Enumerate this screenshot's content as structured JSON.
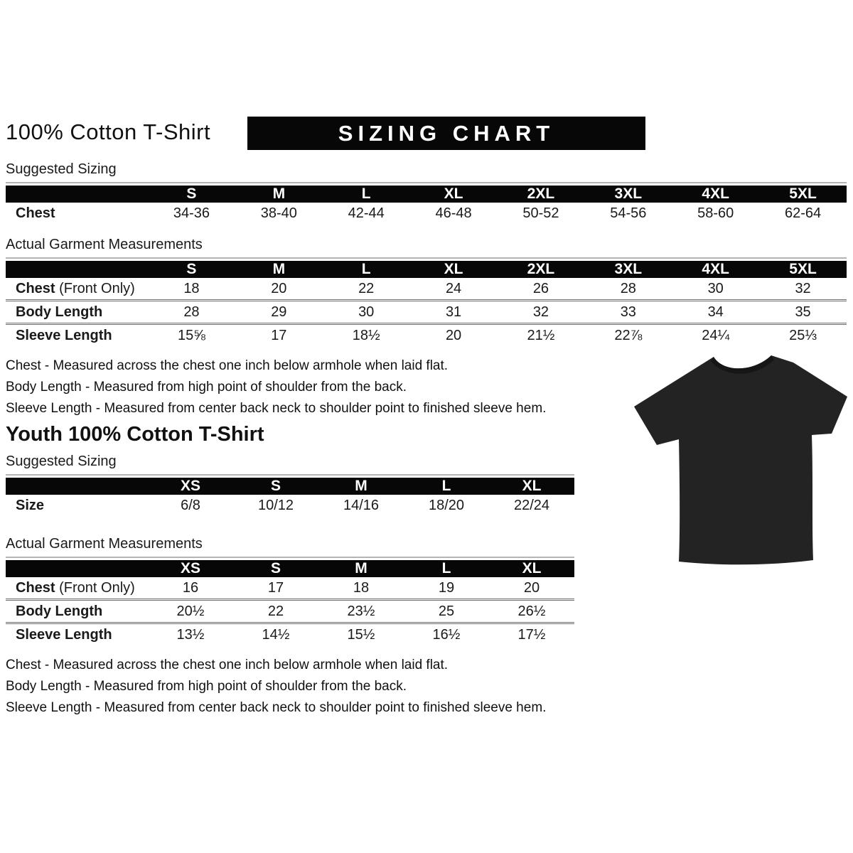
{
  "header": {
    "title": "100% Cotton T-Shirt",
    "banner": "SIZING CHART"
  },
  "adult": {
    "suggested_label": "Suggested Sizing",
    "suggested": {
      "columns": [
        "S",
        "M",
        "L",
        "XL",
        "2XL",
        "3XL",
        "4XL",
        "5XL"
      ],
      "rows": [
        {
          "label": "Chest",
          "suffix": "",
          "values": [
            "34-36",
            "38-40",
            "42-44",
            "46-48",
            "50-52",
            "54-56",
            "58-60",
            "62-64"
          ]
        }
      ]
    },
    "actual_label": "Actual Garment Measurements",
    "actual": {
      "columns": [
        "S",
        "M",
        "L",
        "XL",
        "2XL",
        "3XL",
        "4XL",
        "5XL"
      ],
      "rows": [
        {
          "label": "Chest",
          "suffix": " (Front Only)",
          "values": [
            "18",
            "20",
            "22",
            "24",
            "26",
            "28",
            "30",
            "32"
          ]
        },
        {
          "label": "Body Length",
          "suffix": "",
          "values": [
            "28",
            "29",
            "30",
            "31",
            "32",
            "33",
            "34",
            "35"
          ]
        },
        {
          "label": "Sleeve Length",
          "suffix": "",
          "values": [
            "15⅝",
            "17",
            "18½",
            "20",
            "21½",
            "22⅞",
            "24¼",
            "25⅓"
          ]
        }
      ]
    },
    "notes": [
      "Chest - Measured across the chest one inch below armhole when laid flat.",
      "Body Length - Measured from high point of shoulder from the back.",
      "Sleeve Length - Measured from center back neck to shoulder point to finished sleeve hem."
    ]
  },
  "youth": {
    "title": "Youth 100% Cotton T-Shirt",
    "suggested_label": "Suggested Sizing",
    "suggested": {
      "columns": [
        "XS",
        "S",
        "M",
        "L",
        "XL"
      ],
      "rows": [
        {
          "label": "Size",
          "suffix": "",
          "values": [
            "6/8",
            "10/12",
            "14/16",
            "18/20",
            "22/24"
          ]
        }
      ]
    },
    "actual_label": "Actual Garment Measurements",
    "actual": {
      "columns": [
        "XS",
        "S",
        "M",
        "L",
        "XL"
      ],
      "rows": [
        {
          "label": "Chest",
          "suffix": " (Front Only)",
          "values": [
            "16",
            "17",
            "18",
            "19",
            "20"
          ]
        },
        {
          "label": "Body Length",
          "suffix": "",
          "values": [
            "20½",
            "22",
            "23½",
            "25",
            "26½"
          ]
        },
        {
          "label": "Sleeve Length",
          "suffix": "",
          "values": [
            "13½",
            "14½",
            "15½",
            "16½",
            "17½"
          ]
        }
      ]
    },
    "notes": [
      "Chest - Measured across the chest one inch below armhole when laid flat.",
      "Body Length - Measured from high point of shoulder from the back.",
      "Sleeve Length - Measured from center back neck to shoulder point to finished sleeve hem."
    ]
  },
  "colors": {
    "bar_bg": "#070707",
    "bar_text": "#ffffff",
    "body_text": "#1a1a1a",
    "rule": "#6e6e6e",
    "tshirt": "#222222"
  }
}
